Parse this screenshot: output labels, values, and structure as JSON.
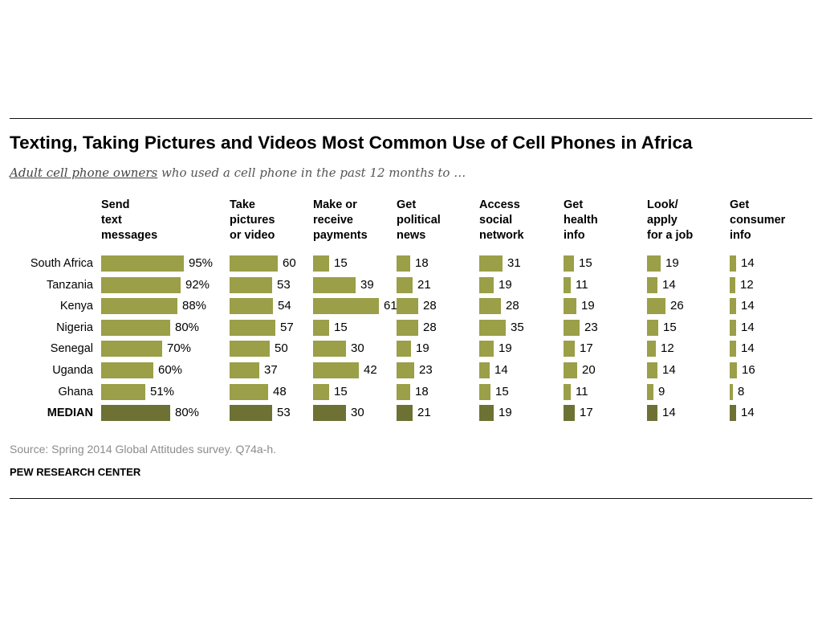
{
  "colors": {
    "bar": "#9a9f48",
    "median_bar": "#6d7234",
    "text": "#000000",
    "source": "#8c8c8c"
  },
  "title": "Texting, Taking Pictures and Videos Most Common Use of Cell Phones in Africa",
  "subtitle": {
    "underlined": "Adult cell phone owners",
    "rest": " who used a cell phone in the past 12 months to …"
  },
  "source": "Source: Spring 2014 Global Attitudes survey. Q74a-h.",
  "org": "PEW RESEARCH CENTER",
  "chart_data": {
    "type": "bar",
    "orientation": "horizontal",
    "title": "Texting, Taking Pictures and Videos Most Common Use of Cell Phones in Africa",
    "categories": [
      "South Africa",
      "Tanzania",
      "Kenya",
      "Nigeria",
      "Senegal",
      "Uganda",
      "Ghana",
      "MEDIAN"
    ],
    "series": [
      {
        "name": "Send\ntext\nmessages",
        "values": [
          95,
          92,
          88,
          80,
          70,
          60,
          51,
          80
        ],
        "labels": [
          "95%",
          "92%",
          "88%",
          "80%",
          "70%",
          "60%",
          "51%",
          "80%"
        ]
      },
      {
        "name": "Take\npictures\nor video",
        "values": [
          60,
          53,
          54,
          57,
          50,
          37,
          48,
          53
        ],
        "labels": [
          "60",
          "53",
          "54",
          "57",
          "50",
          "37",
          "48",
          "53"
        ]
      },
      {
        "name": "Make or\nreceive\npayments",
        "values": [
          15,
          39,
          61,
          15,
          30,
          42,
          15,
          30
        ],
        "labels": [
          "15",
          "39",
          "61",
          "15",
          "30",
          "42",
          "15",
          "30"
        ]
      },
      {
        "name": "Get\npolitical\nnews",
        "values": [
          18,
          21,
          28,
          28,
          19,
          23,
          18,
          21
        ],
        "labels": [
          "18",
          "21",
          "28",
          "28",
          "19",
          "23",
          "18",
          "21"
        ]
      },
      {
        "name": "Access\nsocial\nnetwork",
        "values": [
          31,
          19,
          28,
          35,
          19,
          14,
          15,
          19
        ],
        "labels": [
          "31",
          "19",
          "28",
          "35",
          "19",
          "14",
          "15",
          "19"
        ]
      },
      {
        "name": "Get\nhealth\ninfo",
        "values": [
          15,
          11,
          19,
          23,
          17,
          20,
          11,
          17
        ],
        "labels": [
          "15",
          "11",
          "19",
          "23",
          "17",
          "20",
          "11",
          "17"
        ]
      },
      {
        "name": "Look/\napply\nfor a job",
        "values": [
          19,
          14,
          26,
          15,
          12,
          14,
          9,
          14
        ],
        "labels": [
          "19",
          "14",
          "26",
          "15",
          "12",
          "14",
          "9",
          "14"
        ]
      },
      {
        "name": "Get\nconsumer\ninfo",
        "values": [
          14,
          12,
          14,
          14,
          14,
          16,
          8,
          14
        ],
        "labels": [
          "14",
          "12",
          "14",
          "14",
          "14",
          "16",
          "8",
          "14"
        ]
      }
    ],
    "median_category": "MEDIAN",
    "value_unit": "%"
  }
}
